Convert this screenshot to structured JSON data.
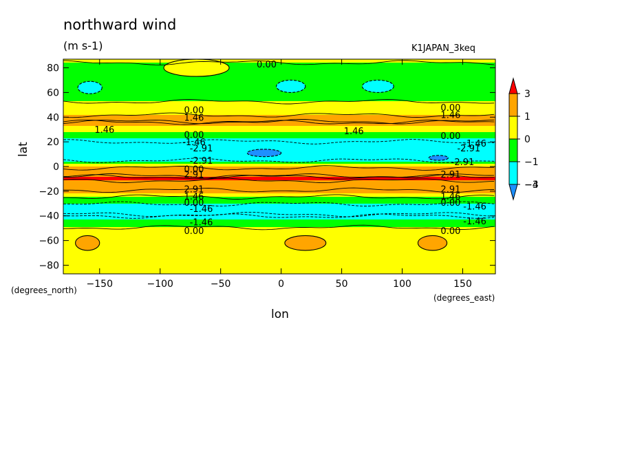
{
  "header": {
    "title": "northward wind",
    "units": "(m s-1)",
    "run_name": "K1JAPAN_3keq"
  },
  "axes": {
    "xlabel": "lon",
    "ylabel": "lat",
    "xunit": "(degrees_east)",
    "yunit": "(degrees_north)"
  },
  "chart_data": {
    "type": "heatmap",
    "title": "northward wind",
    "x": {
      "label": "lon",
      "range": [
        -180,
        177
      ],
      "ticks": [
        -150,
        -100,
        -50,
        0,
        50,
        100,
        150
      ]
    },
    "y": {
      "label": "lat",
      "range": [
        -87,
        87
      ],
      "ticks": [
        -80,
        -60,
        -40,
        -20,
        0,
        20,
        40,
        60,
        80
      ]
    },
    "colorbar": {
      "levels": [
        3,
        1,
        0,
        -1,
        -3,
        -4
      ],
      "labels": [
        "3",
        "1",
        "0",
        "−1",
        "−3",
        "−4"
      ],
      "bins": [
        {
          "range": "> 3",
          "color": "#ff0000"
        },
        {
          "range": "1 to 3",
          "color": "#ffa500"
        },
        {
          "range": "0 to 1",
          "color": "#ffff00"
        },
        {
          "range": "-1 to 0",
          "color": "#00ff00"
        },
        {
          "range": "-3 to -1",
          "color": "#00ffff"
        },
        {
          "range": "< -3",
          "color": "#1e90ff"
        }
      ]
    },
    "zonal_mean_profile": [
      {
        "lat": 87,
        "value": 0.2
      },
      {
        "lat": 80,
        "value": -0.3
      },
      {
        "lat": 70,
        "value": -0.6
      },
      {
        "lat": 60,
        "value": -0.8
      },
      {
        "lat": 50,
        "value": 0.3
      },
      {
        "lat": 44,
        "value": 0.8
      },
      {
        "lat": 36,
        "value": 1.5
      },
      {
        "lat": 30,
        "value": 0.5
      },
      {
        "lat": 26,
        "value": -0.5
      },
      {
        "lat": 20,
        "value": -1.5
      },
      {
        "lat": 12,
        "value": -2.8
      },
      {
        "lat": 6,
        "value": -2.0
      },
      {
        "lat": 3,
        "value": -0.5
      },
      {
        "lat": 0,
        "value": 1.0
      },
      {
        "lat": -4,
        "value": 2.5
      },
      {
        "lat": -10,
        "value": 3.2
      },
      {
        "lat": -16,
        "value": 2.0
      },
      {
        "lat": -22,
        "value": 1.0
      },
      {
        "lat": -26,
        "value": -0.5
      },
      {
        "lat": -32,
        "value": -1.2
      },
      {
        "lat": -40,
        "value": -1.5
      },
      {
        "lat": -46,
        "value": -0.5
      },
      {
        "lat": -52,
        "value": 0.4
      },
      {
        "lat": -65,
        "value": 0.5
      },
      {
        "lat": -80,
        "value": 0.3
      },
      {
        "lat": -87,
        "value": 0.2
      }
    ],
    "local_features": [
      {
        "lon": -158,
        "lat": 64,
        "value": -1.5,
        "rx": 10,
        "ry": 5
      },
      {
        "lon": 8,
        "lat": 65,
        "value": -1.5,
        "rx": 12,
        "ry": 5
      },
      {
        "lon": 80,
        "lat": 65,
        "value": -1.5,
        "rx": 13,
        "ry": 5
      },
      {
        "lon": -14,
        "lat": 11,
        "value": -3.5,
        "rx": 14,
        "ry": 3
      },
      {
        "lon": 130,
        "lat": 7,
        "value": -3.5,
        "rx": 8,
        "ry": 2
      },
      {
        "lon": -160,
        "lat": -62,
        "value": 1.5,
        "rx": 10,
        "ry": 6
      },
      {
        "lon": 20,
        "lat": -62,
        "value": 1.5,
        "rx": 17,
        "ry": 6
      },
      {
        "lon": 125,
        "lat": -62,
        "value": 1.5,
        "rx": 12,
        "ry": 6
      },
      {
        "lon": -70,
        "lat": 80,
        "value": 0.3,
        "rx": 27,
        "ry": 7
      }
    ],
    "contour_labels": [
      {
        "lon": -12,
        "lat": 83,
        "text": "0.00"
      },
      {
        "lon": -72,
        "lat": 46,
        "text": "0.00"
      },
      {
        "lon": -72,
        "lat": 40,
        "text": "1.46"
      },
      {
        "lon": -146,
        "lat": 30,
        "text": "1.46"
      },
      {
        "lon": -72,
        "lat": 26,
        "text": "0.00"
      },
      {
        "lon": -72,
        "lat": 20,
        "text": "-1.46"
      },
      {
        "lon": -66,
        "lat": 15,
        "text": "-2.91"
      },
      {
        "lon": -66,
        "lat": 5,
        "text": "-2.91"
      },
      {
        "lon": -72,
        "lat": -2,
        "text": "0.00"
      },
      {
        "lon": -72,
        "lat": -6,
        "text": "2.91"
      },
      {
        "lon": -72,
        "lat": -18,
        "text": "2.91"
      },
      {
        "lon": -72,
        "lat": -24,
        "text": "1.46"
      },
      {
        "lon": -72,
        "lat": -29,
        "text": "0.00"
      },
      {
        "lon": -66,
        "lat": -34,
        "text": "-1.46"
      },
      {
        "lon": -66,
        "lat": -45,
        "text": "-1.46"
      },
      {
        "lon": -72,
        "lat": -52,
        "text": "0.00"
      },
      {
        "lon": 140,
        "lat": 48,
        "text": "0.00"
      },
      {
        "lon": 140,
        "lat": 42,
        "text": "1.46"
      },
      {
        "lon": 60,
        "lat": 29,
        "text": "1.46"
      },
      {
        "lon": 140,
        "lat": 25,
        "text": "0.00"
      },
      {
        "lon": 160,
        "lat": 19,
        "text": "-1.46"
      },
      {
        "lon": 155,
        "lat": 15,
        "text": "-2.91"
      },
      {
        "lon": 150,
        "lat": 4,
        "text": "-2.91"
      },
      {
        "lon": 140,
        "lat": -6,
        "text": "2.91"
      },
      {
        "lon": 140,
        "lat": -18,
        "text": "2.91"
      },
      {
        "lon": 140,
        "lat": -24,
        "text": "1.46"
      },
      {
        "lon": 140,
        "lat": -29,
        "text": "0.00"
      },
      {
        "lon": 160,
        "lat": -32,
        "text": "-1.46"
      },
      {
        "lon": 160,
        "lat": -44,
        "text": "-1.46"
      },
      {
        "lon": 140,
        "lat": -52,
        "text": "0.00"
      }
    ]
  }
}
